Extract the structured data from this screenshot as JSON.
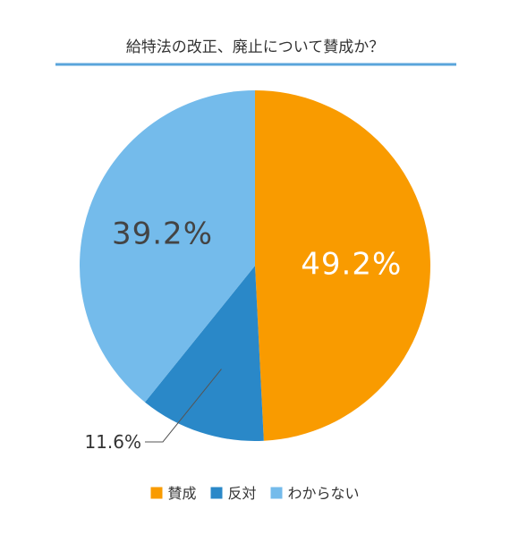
{
  "chart_data": {
    "type": "pie",
    "title": "給特法の改正、廃止について賛成か？",
    "slices": [
      {
        "label": "賛成",
        "value": 49.2,
        "display": "49.2%",
        "color": "#F99B00",
        "label_color": "#ffffff",
        "label_position": "inside"
      },
      {
        "label": "反対",
        "value": 11.6,
        "display": "11.6%",
        "color": "#2A88C8",
        "label_color": "#333333",
        "label_position": "outside"
      },
      {
        "label": "わからない",
        "value": 39.2,
        "display": "39.2%",
        "color": "#74BBEB",
        "label_color": "#444444",
        "label_position": "inside"
      }
    ],
    "start": "12 o'clock",
    "direction": "clockwise",
    "legend": {
      "placement": "bottom"
    },
    "colors": {
      "title_underline": "#5AA5DB"
    }
  }
}
